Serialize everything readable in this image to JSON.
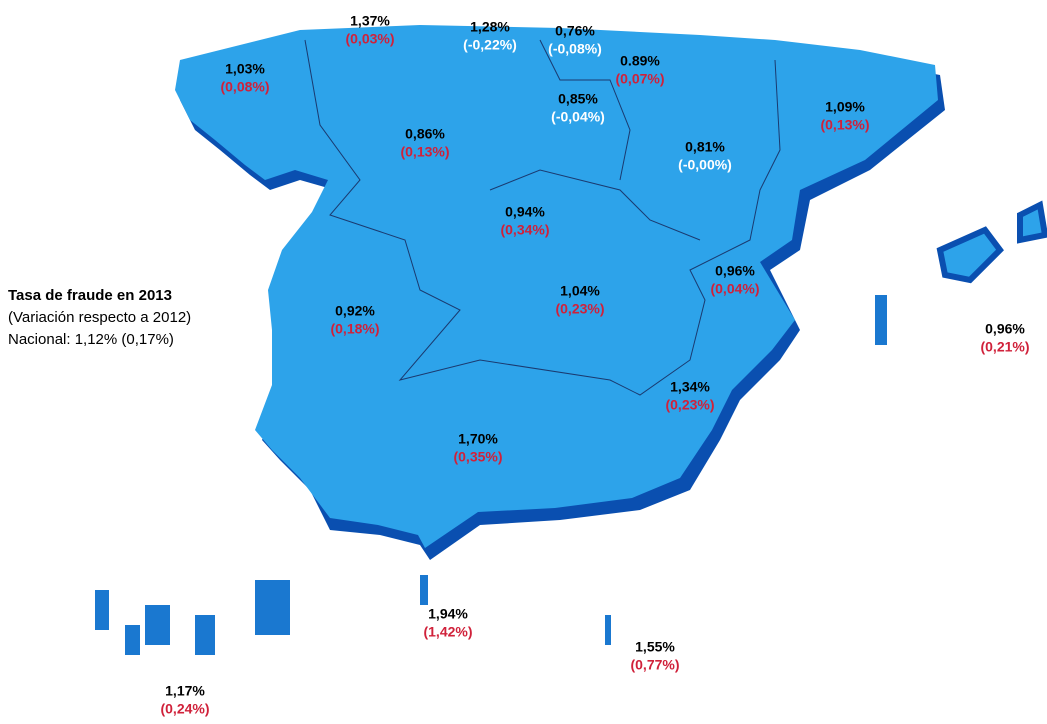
{
  "legend": {
    "title": "Tasa de fraude en 2013",
    "subtitle": " (Variación respecto a 2012)",
    "national": "Nacional: 1,12% (0,17%)"
  },
  "regions": [
    {
      "rate": "1,03%",
      "change": "(0,08%)",
      "change_color": "#d0213a"
    },
    {
      "rate": "1,37%",
      "change": "(0,03%)",
      "change_color": "#d0213a"
    },
    {
      "rate": "1,28%",
      "change": "(-0,22%)",
      "change_color": "#ffffff"
    },
    {
      "rate": "0,76%",
      "change": "(-0,08%)",
      "change_color": "#ffffff"
    },
    {
      "rate": "0.89%",
      "change": "(0,07%)",
      "change_color": "#d0213a"
    },
    {
      "rate": "0,85%",
      "change": "(-0,04%)",
      "change_color": "#ffffff"
    },
    {
      "rate": "0,86%",
      "change": "(0,13%)",
      "change_color": "#d0213a"
    },
    {
      "rate": "1,09%",
      "change": "(0,13%)",
      "change_color": "#d0213a"
    },
    {
      "rate": "0,81%",
      "change": "(-0,00%)",
      "change_color": "#ffffff"
    },
    {
      "rate": "0,94%",
      "change": "(0,34%)",
      "change_color": "#d0213a"
    },
    {
      "rate": "0,96%",
      "change": "(0,04%)",
      "change_color": "#d0213a"
    },
    {
      "rate": "0,96%",
      "change": "(0,21%)",
      "change_color": "#d0213a"
    },
    {
      "rate": "0,92%",
      "change": "(0,18%)",
      "change_color": "#d0213a"
    },
    {
      "rate": "1,04%",
      "change": "(0,23%)",
      "change_color": "#d0213a"
    },
    {
      "rate": "1,34%",
      "change": "(0,23%)",
      "change_color": "#d0213a"
    },
    {
      "rate": "1,70%",
      "change": "(0,35%)",
      "change_color": "#d0213a"
    },
    {
      "rate": "1,94%",
      "change": "(1,42%)",
      "change_color": "#d0213a"
    },
    {
      "rate": "1,55%",
      "change": "(0,77%)",
      "change_color": "#d0213a"
    },
    {
      "rate": "1,17%",
      "change": "(0,24%)",
      "change_color": "#d0213a"
    }
  ]
}
